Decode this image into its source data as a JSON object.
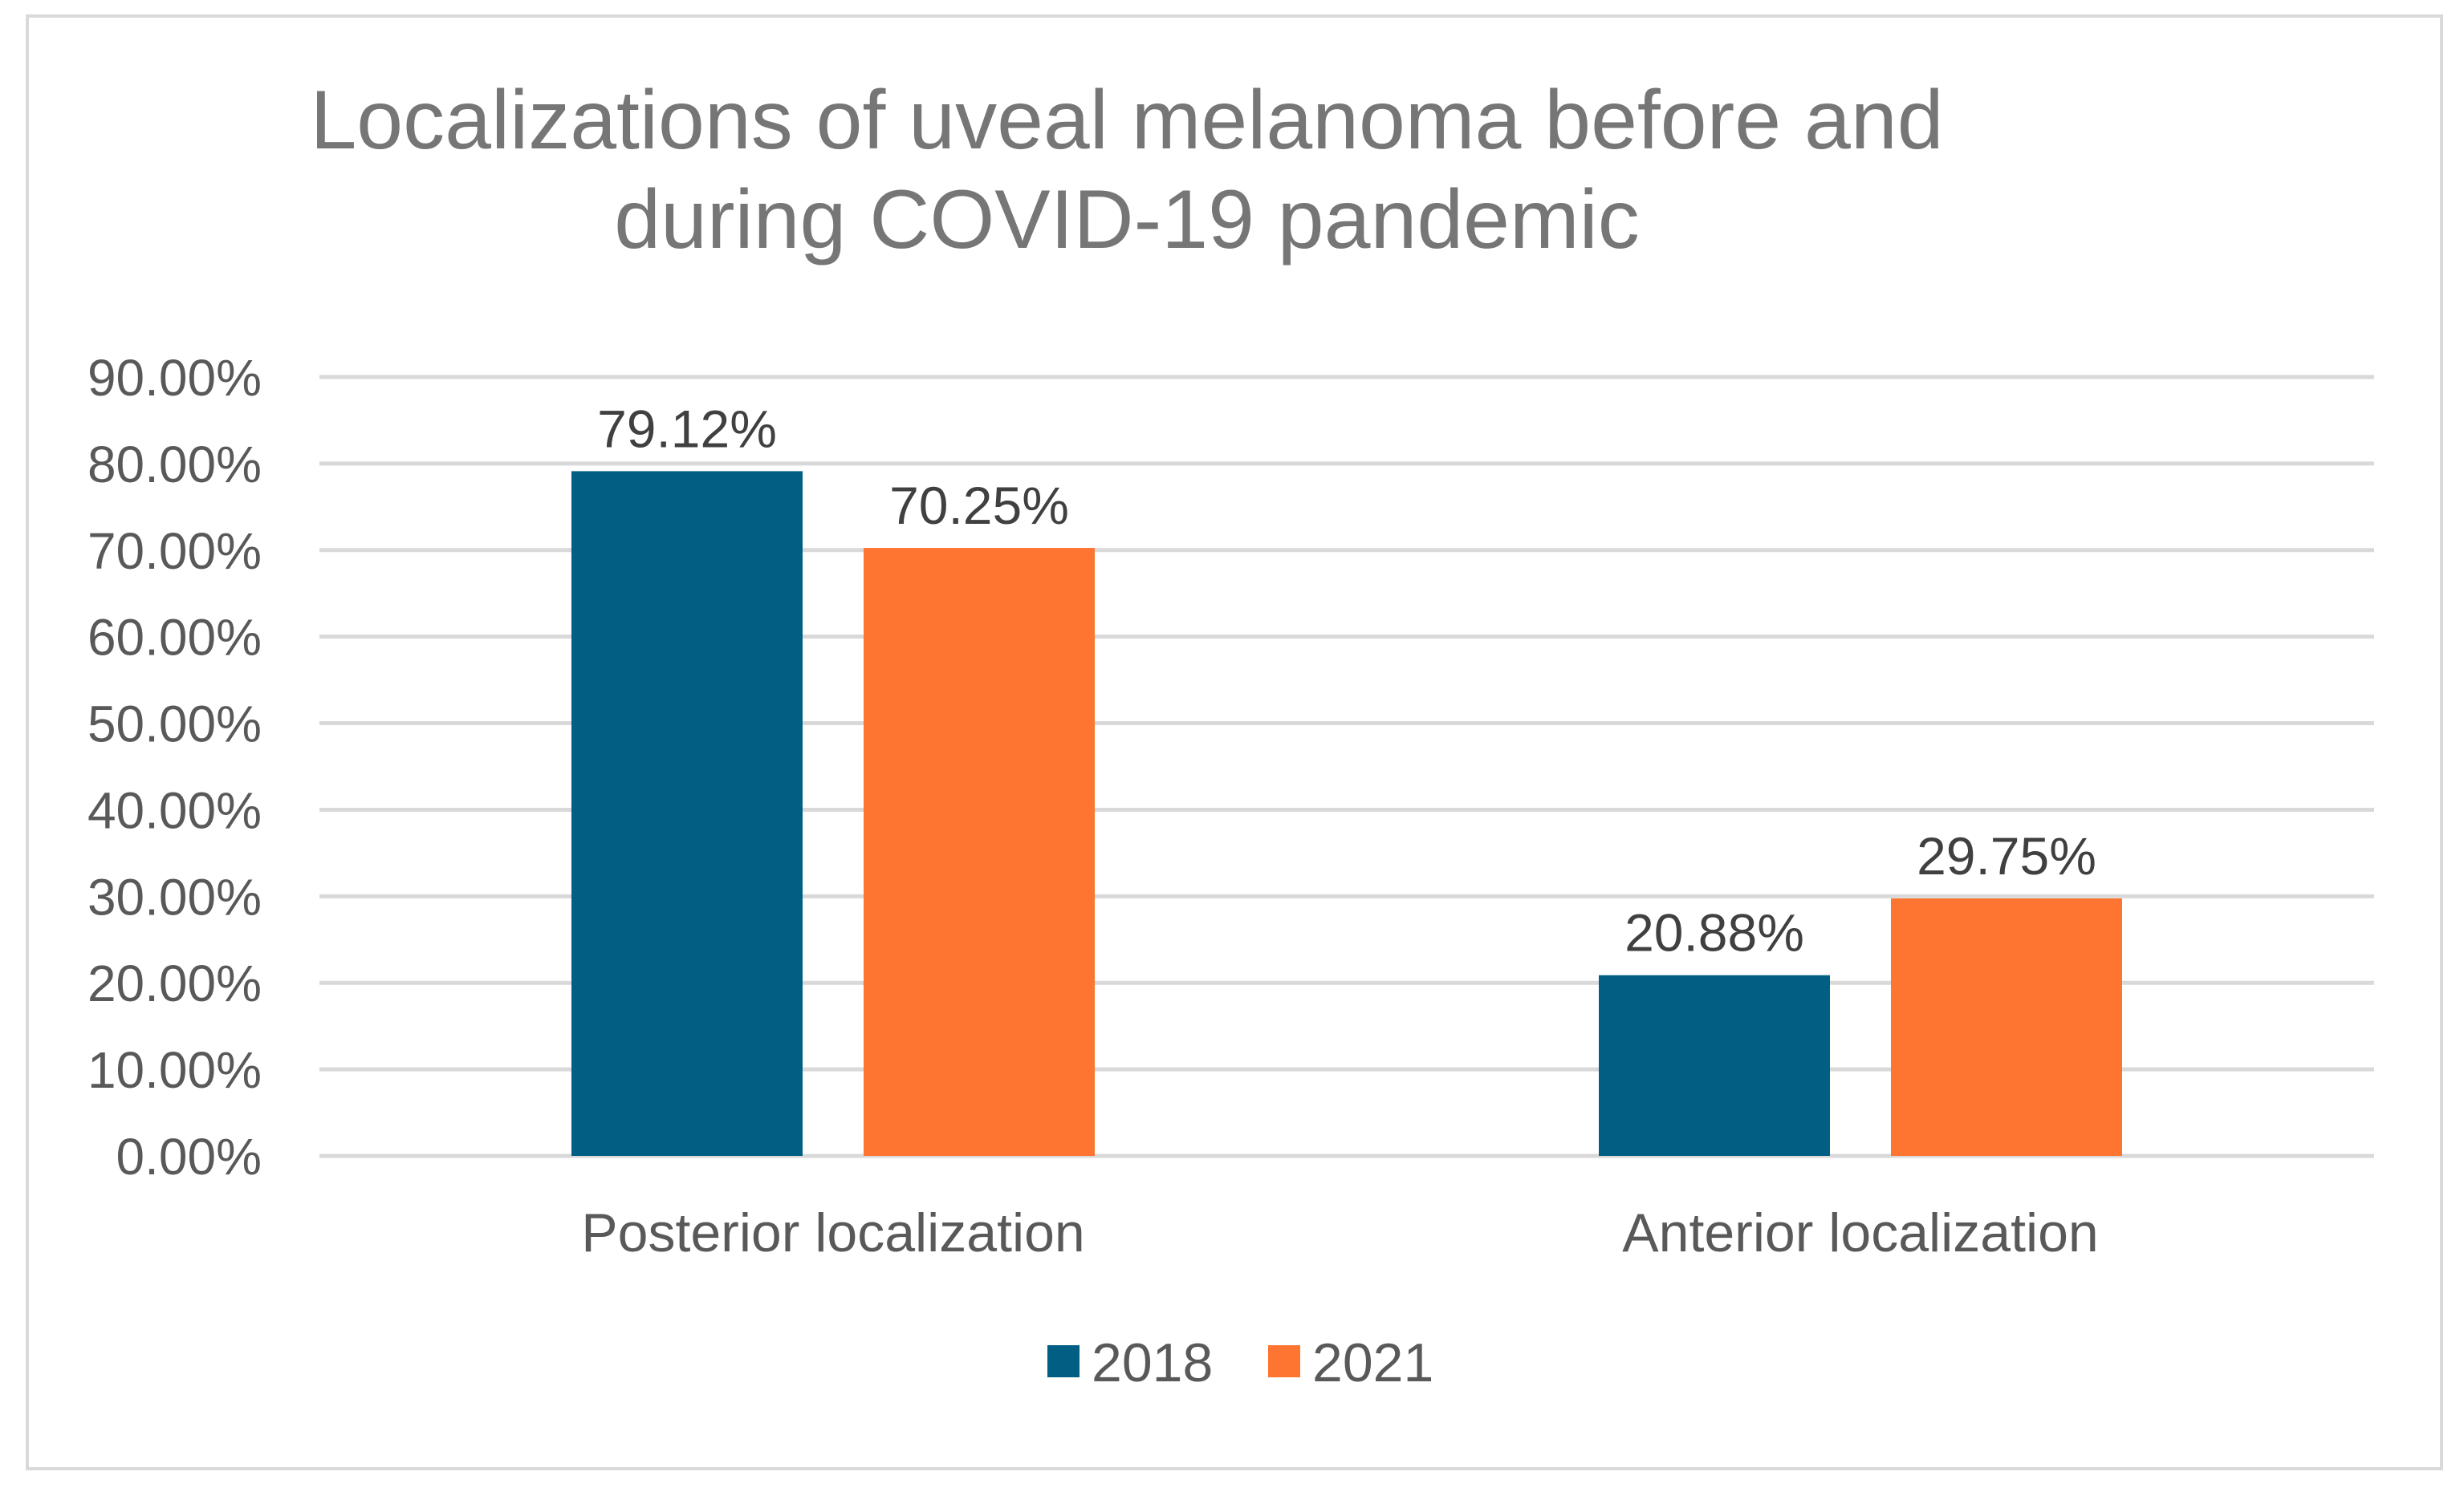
{
  "chart_data": {
    "type": "bar",
    "title": "Localizations of uveal melanoma before and during COVID-19 pandemic",
    "title_lines": [
      "Localizations of uveal melanoma before and",
      "during COVID-19 pandemic"
    ],
    "categories": [
      "Posterior localization",
      "Anterior localization"
    ],
    "series": [
      {
        "name": "2018",
        "color": "#005f83",
        "values": [
          79.12,
          20.88
        ],
        "labels": [
          "79.12%",
          "20.88%"
        ]
      },
      {
        "name": "2021",
        "color": "#fd7530",
        "values": [
          70.25,
          29.75
        ],
        "labels": [
          "70.25%",
          "29.75%"
        ]
      }
    ],
    "ylim": [
      0,
      90
    ],
    "yticks": [
      0,
      10,
      20,
      30,
      40,
      50,
      60,
      70,
      80,
      90
    ],
    "ytick_labels": [
      "0.00%",
      "10.00%",
      "20.00%",
      "30.00%",
      "40.00%",
      "50.00%",
      "60.00%",
      "70.00%",
      "80.00%",
      "90.00%"
    ],
    "grid": true,
    "legend_position": "bottom",
    "xlabel": "",
    "ylabel": ""
  }
}
